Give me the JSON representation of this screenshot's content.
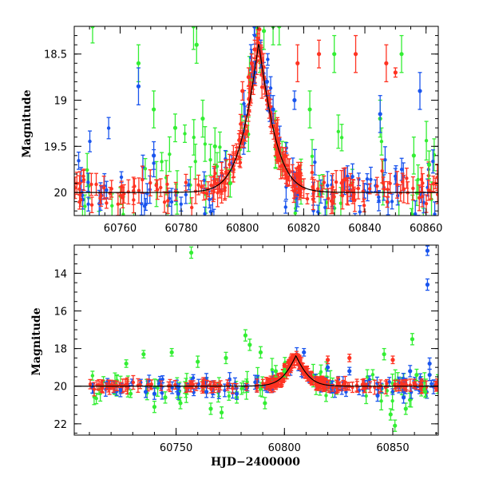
{
  "chart_data": [
    {
      "type": "scatter",
      "title": "",
      "xlabel": "",
      "ylabel": "Magnitude",
      "xlim": [
        60745,
        60864
      ],
      "ylim": [
        20.25,
        18.2
      ],
      "y_inverted": true,
      "x_ticks": [
        60760,
        60780,
        60800,
        60820,
        60840,
        60860
      ],
      "y_ticks": [
        18.5,
        19,
        19.5,
        20
      ],
      "y_tick_labels": [
        "18.5",
        "19",
        "19.5",
        "20"
      ],
      "colors": {
        "green": "#33ee33",
        "blue": "#1a55ee",
        "red": "#ff3322",
        "model": "#000000"
      },
      "model_curve": {
        "baseline_mag": 20.0,
        "peak_time": 60805.3,
        "peak_mag": 18.38,
        "width_days": 3.5
      },
      "series": [
        {
          "color": "green",
          "points": [
            {
              "x": 60751,
              "y": 18.2,
              "err": 0.18
            },
            {
              "x": 60766,
              "y": 18.6,
              "err": 0.2
            },
            {
              "x": 60771,
              "y": 19.1,
              "err": 0.2
            },
            {
              "x": 60778,
              "y": 19.3,
              "err": 0.15
            },
            {
              "x": 60784,
              "y": 18.2,
              "err": 0.25
            },
            {
              "x": 60785,
              "y": 18.4,
              "err": 0.2
            },
            {
              "x": 60787,
              "y": 19.2,
              "err": 0.2
            },
            {
              "x": 60791,
              "y": 19.5,
              "err": 0.2
            },
            {
              "x": 60796,
              "y": 19.9,
              "err": 0.15
            },
            {
              "x": 60807,
              "y": 18.25,
              "err": 0.2
            },
            {
              "x": 60810,
              "y": 18.2,
              "err": 0.2
            },
            {
              "x": 60812,
              "y": 18.2,
              "err": 0.2
            },
            {
              "x": 60822,
              "y": 19.1,
              "err": 0.2
            },
            {
              "x": 60830,
              "y": 18.5,
              "err": 0.2
            },
            {
              "x": 60845,
              "y": 19.2,
              "err": 0.2
            },
            {
              "x": 60852,
              "y": 18.5,
              "err": 0.2
            },
            {
              "x": 60856,
              "y": 19.6,
              "err": 0.2
            },
            {
              "x": 60861,
              "y": 19.7,
              "err": 0.15
            }
          ]
        },
        {
          "color": "blue",
          "points": [
            {
              "x": 60766,
              "y": 18.85,
              "err": 0.2
            },
            {
              "x": 60771,
              "y": 19.6,
              "err": 0.15
            },
            {
              "x": 60803,
              "y": 18.6,
              "err": 0.15
            },
            {
              "x": 60804,
              "y": 18.7,
              "err": 0.12
            },
            {
              "x": 60806,
              "y": 18.5,
              "err": 0.15
            },
            {
              "x": 60808,
              "y": 18.8,
              "err": 0.15
            },
            {
              "x": 60810,
              "y": 19.1,
              "err": 0.15
            },
            {
              "x": 60817,
              "y": 19.0,
              "err": 0.1
            },
            {
              "x": 60845,
              "y": 19.15,
              "err": 0.2
            },
            {
              "x": 60858,
              "y": 18.9,
              "err": 0.2
            }
          ]
        },
        {
          "color": "red",
          "points": [
            {
              "x": 60800,
              "y": 18.9,
              "err": 0.1
            },
            {
              "x": 60802,
              "y": 18.75,
              "err": 0.1
            },
            {
              "x": 60803,
              "y": 18.6,
              "err": 0.1
            },
            {
              "x": 60804,
              "y": 18.45,
              "err": 0.1
            },
            {
              "x": 60805,
              "y": 18.38,
              "err": 0.1
            },
            {
              "x": 60806,
              "y": 18.5,
              "err": 0.1
            },
            {
              "x": 60807,
              "y": 18.75,
              "err": 0.1
            },
            {
              "x": 60808,
              "y": 19.0,
              "err": 0.1
            },
            {
              "x": 60818,
              "y": 18.6,
              "err": 0.2
            },
            {
              "x": 60825,
              "y": 18.5,
              "err": 0.15
            },
            {
              "x": 60837,
              "y": 18.5,
              "err": 0.2
            },
            {
              "x": 60847,
              "y": 18.6,
              "err": 0.2
            },
            {
              "x": 60850,
              "y": 18.7,
              "err": 0.05
            }
          ]
        }
      ]
    },
    {
      "type": "scatter",
      "title": "",
      "xlabel": "HJD−2400000",
      "ylabel": "Magnitude",
      "xlim": [
        60703,
        60871
      ],
      "ylim": [
        22.6,
        12.5
      ],
      "y_inverted": true,
      "x_ticks": [
        60750,
        60800,
        60850
      ],
      "y_ticks": [
        14,
        16,
        18,
        20,
        22
      ],
      "y_tick_labels": [
        "14",
        "16",
        "18",
        "20",
        "22"
      ],
      "colors": {
        "green": "#33ee33",
        "blue": "#1a55ee",
        "red": "#ff3322",
        "model": "#000000"
      },
      "model_curve": {
        "baseline_mag": 20.0,
        "peak_time": 60805.3,
        "peak_mag": 18.38,
        "width_days": 3.5
      },
      "series": [
        {
          "color": "green",
          "points": [
            {
              "x": 60757,
              "y": 12.9,
              "err": 0.3
            },
            {
              "x": 60727,
              "y": 18.8,
              "err": 0.2
            },
            {
              "x": 60735,
              "y": 18.3,
              "err": 0.2
            },
            {
              "x": 60748,
              "y": 18.2,
              "err": 0.2
            },
            {
              "x": 60760,
              "y": 18.7,
              "err": 0.3
            },
            {
              "x": 60773,
              "y": 18.5,
              "err": 0.3
            },
            {
              "x": 60782,
              "y": 17.3,
              "err": 0.3
            },
            {
              "x": 60784,
              "y": 17.8,
              "err": 0.3
            },
            {
              "x": 60789,
              "y": 18.2,
              "err": 0.3
            },
            {
              "x": 60791,
              "y": 20.9,
              "err": 0.3
            },
            {
              "x": 60796,
              "y": 19.2,
              "err": 0.3
            },
            {
              "x": 60740,
              "y": 21.1,
              "err": 0.3
            },
            {
              "x": 60752,
              "y": 20.9,
              "err": 0.3
            },
            {
              "x": 60766,
              "y": 21.2,
              "err": 0.3
            },
            {
              "x": 60771,
              "y": 21.4,
              "err": 0.3
            },
            {
              "x": 60778,
              "y": 20.6,
              "err": 0.3
            },
            {
              "x": 60849,
              "y": 21.5,
              "err": 0.3
            },
            {
              "x": 60851,
              "y": 22.1,
              "err": 0.3
            },
            {
              "x": 60856,
              "y": 21.2,
              "err": 0.3
            },
            {
              "x": 60859,
              "y": 17.5,
              "err": 0.3
            },
            {
              "x": 60865,
              "y": 20.3,
              "err": 0.3
            },
            {
              "x": 60729,
              "y": 20.4,
              "err": 0.2
            },
            {
              "x": 60745,
              "y": 20.6,
              "err": 0.3
            },
            {
              "x": 60800,
              "y": 19.2,
              "err": 0.3
            },
            {
              "x": 60846,
              "y": 18.3,
              "err": 0.3
            },
            {
              "x": 60861,
              "y": 19.4,
              "err": 0.3
            }
          ]
        },
        {
          "color": "blue",
          "points": [
            {
              "x": 60866,
              "y": 12.8,
              "err": 0.25
            },
            {
              "x": 60866,
              "y": 14.6,
              "err": 0.3
            },
            {
              "x": 60867,
              "y": 18.8,
              "err": 0.3
            },
            {
              "x": 60867,
              "y": 19.4,
              "err": 0.3
            },
            {
              "x": 60740,
              "y": 20.4,
              "err": 0.3
            },
            {
              "x": 60736,
              "y": 20.3,
              "err": 0.3
            },
            {
              "x": 60751,
              "y": 20.4,
              "err": 0.3
            },
            {
              "x": 60764,
              "y": 20.3,
              "err": 0.3
            },
            {
              "x": 60778,
              "y": 20.4,
              "err": 0.3
            },
            {
              "x": 60809,
              "y": 18.2,
              "err": 0.2
            },
            {
              "x": 60820,
              "y": 19.0,
              "err": 0.2
            },
            {
              "x": 60830,
              "y": 19.2,
              "err": 0.2
            },
            {
              "x": 60843,
              "y": 20.5,
              "err": 0.3
            },
            {
              "x": 60855,
              "y": 20.6,
              "err": 0.3
            },
            {
              "x": 60858,
              "y": 19.2,
              "err": 0.3
            }
          ]
        },
        {
          "color": "red",
          "points": [
            {
              "x": 60800,
              "y": 18.9,
              "err": 0.1
            },
            {
              "x": 60802,
              "y": 18.7,
              "err": 0.1
            },
            {
              "x": 60804,
              "y": 18.45,
              "err": 0.1
            },
            {
              "x": 60805,
              "y": 18.38,
              "err": 0.1
            },
            {
              "x": 60806,
              "y": 18.5,
              "err": 0.1
            },
            {
              "x": 60808,
              "y": 18.85,
              "err": 0.1
            },
            {
              "x": 60810,
              "y": 19.1,
              "err": 0.1
            },
            {
              "x": 60830,
              "y": 18.5,
              "err": 0.2
            },
            {
              "x": 60820,
              "y": 18.6,
              "err": 0.2
            },
            {
              "x": 60850,
              "y": 18.6,
              "err": 0.2
            }
          ]
        }
      ]
    }
  ]
}
